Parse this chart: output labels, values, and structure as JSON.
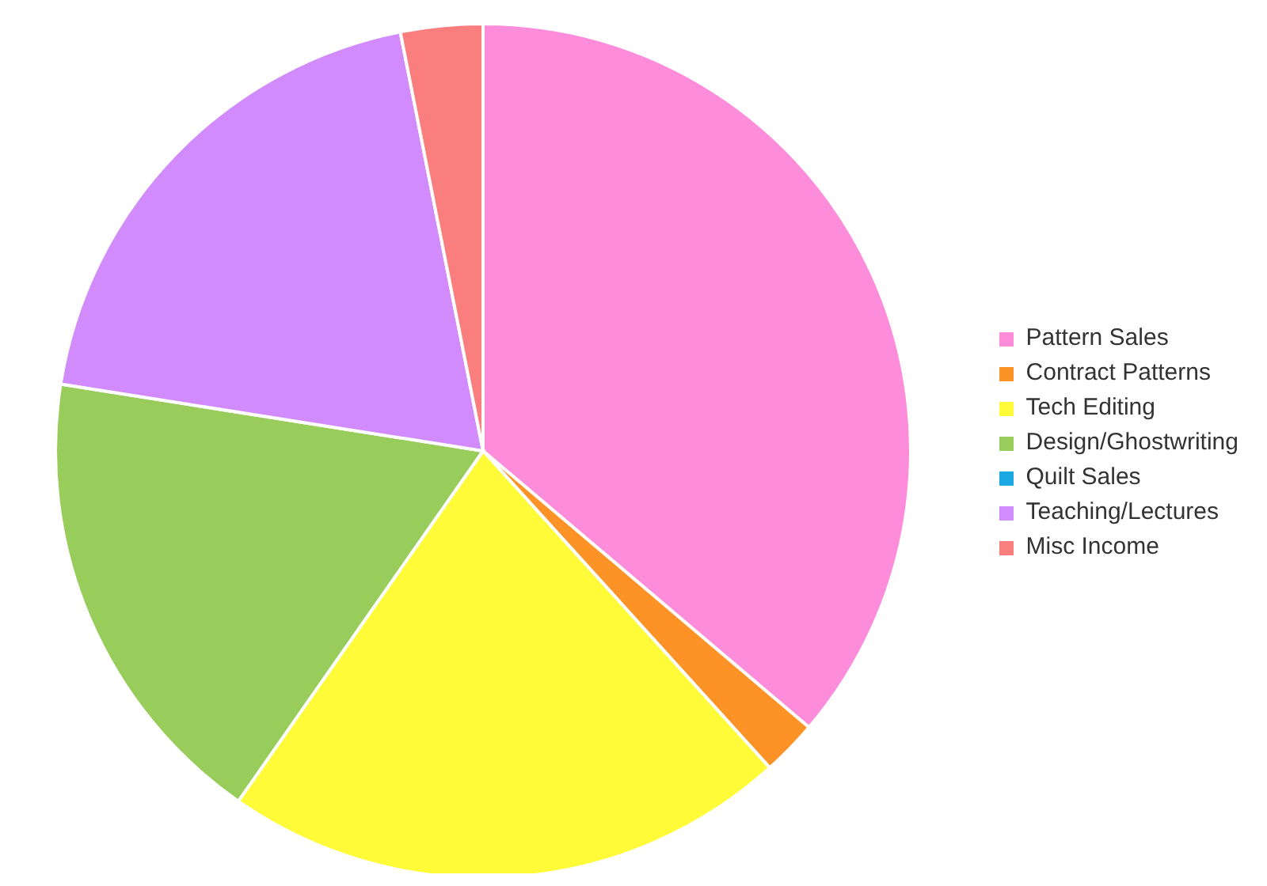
{
  "chart_data": {
    "type": "pie",
    "categories": [
      "Pattern Sales",
      "Contract Patterns",
      "Tech Editing",
      "Design/Ghostwriting",
      "Quilt Sales",
      "Teaching/Lectures",
      "Misc Income"
    ],
    "values": [
      36.2,
      2.1,
      21.4,
      17.8,
      0,
      19.4,
      3.1
    ],
    "colors": [
      "#fd8cdb",
      "#fd9327",
      "#fffb38",
      "#99cd5b",
      "#1ba9e1",
      "#d28bfd",
      "#fb7e7e"
    ],
    "legend": "right"
  }
}
